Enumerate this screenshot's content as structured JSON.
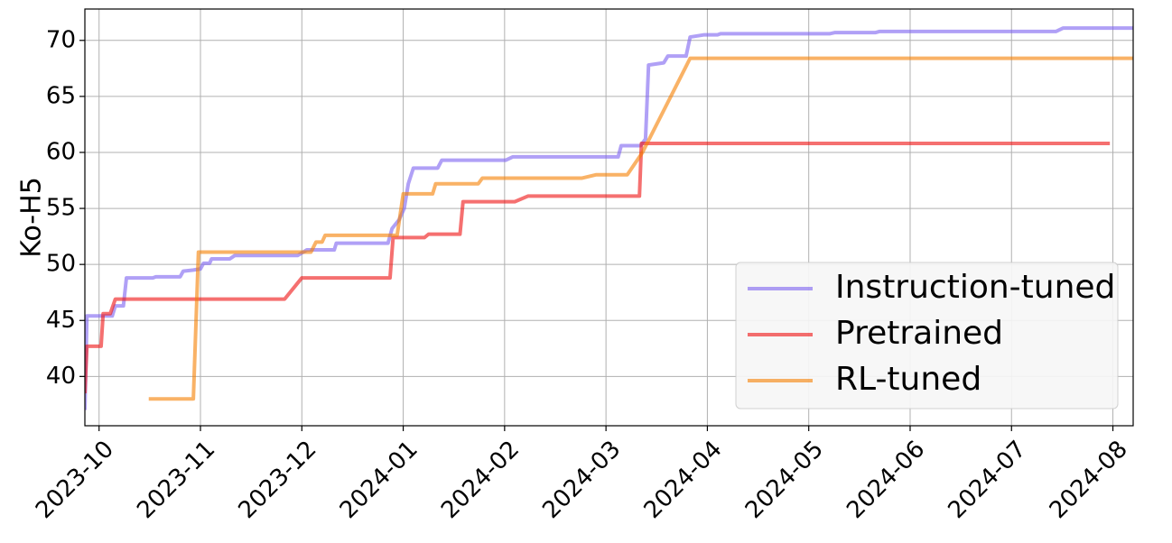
{
  "chart_data": {
    "type": "line",
    "y_label": "Ko-H5",
    "xlim": [
      -0.14,
      10.2
    ],
    "xticks": [
      {
        "value": 0,
        "label": "2023-10"
      },
      {
        "value": 1,
        "label": "2023-11"
      },
      {
        "value": 2,
        "label": "2023-12"
      },
      {
        "value": 3,
        "label": "2024-01"
      },
      {
        "value": 4,
        "label": "2024-02"
      },
      {
        "value": 5,
        "label": "2024-03"
      },
      {
        "value": 6,
        "label": "2024-04"
      },
      {
        "value": 7,
        "label": "2024-05"
      },
      {
        "value": 8,
        "label": "2024-06"
      },
      {
        "value": 9,
        "label": "2024-07"
      },
      {
        "value": 10,
        "label": "2024-08"
      }
    ],
    "ylim": [
      35.6,
      72.8
    ],
    "yticks": [
      40,
      45,
      50,
      55,
      60,
      65,
      70
    ],
    "grid": true,
    "legend": "lower right",
    "series": [
      {
        "name": "Instruction-tuned",
        "color": "#7b61f0",
        "x": [
          -0.14,
          -0.12,
          0.13,
          0.16,
          0.24,
          0.27,
          0.53,
          0.56,
          0.8,
          0.83,
          0.93,
          1.0,
          1.03,
          1.09,
          1.11,
          1.29,
          1.34,
          1.96,
          2.05,
          2.32,
          2.34,
          2.85,
          2.89,
          2.96,
          3.01,
          3.05,
          3.1,
          3.34,
          3.38,
          4.01,
          4.08,
          5.12,
          5.15,
          5.34,
          5.39,
          5.42,
          5.57,
          5.61,
          5.79,
          5.83,
          5.97,
          6.1,
          6.13,
          7.21,
          7.26,
          7.66,
          7.7,
          9.44,
          9.51,
          10.2
        ],
        "values": [
          37,
          45.4,
          45.4,
          46.3,
          46.3,
          48.8,
          48.8,
          48.9,
          48.9,
          49.4,
          49.5,
          49.6,
          50.1,
          50.1,
          50.5,
          50.5,
          50.8,
          50.8,
          51.3,
          51.3,
          51.9,
          51.9,
          53.2,
          54.0,
          55.0,
          57.2,
          58.6,
          58.6,
          59.3,
          59.3,
          59.6,
          59.6,
          60.6,
          60.6,
          61.2,
          67.8,
          68.0,
          68.6,
          68.6,
          70.3,
          70.5,
          70.5,
          70.6,
          70.6,
          70.7,
          70.7,
          70.8,
          70.8,
          71.1,
          71.1
        ]
      },
      {
        "name": "Pretrained",
        "color": "#ee1111",
        "x": [
          -0.14,
          -0.12,
          0.02,
          0.04,
          0.11,
          0.16,
          1.83,
          2.0,
          2.87,
          2.9,
          3.21,
          3.25,
          3.56,
          3.59,
          4.1,
          4.23,
          5.33,
          5.35,
          9.97
        ],
        "values": [
          38.5,
          42.7,
          42.7,
          45.6,
          45.6,
          46.9,
          46.9,
          48.8,
          48.8,
          52.4,
          52.4,
          52.7,
          52.7,
          55.6,
          55.6,
          56.1,
          56.1,
          60.8,
          60.8
        ]
      },
      {
        "name": "RL-tuned",
        "color": "#f57f00",
        "x": [
          0.49,
          0.93,
          0.98,
          2.09,
          2.14,
          2.2,
          2.23,
          2.94,
          3.0,
          3.29,
          3.32,
          3.74,
          3.78,
          4.76,
          4.9,
          5.21,
          5.36,
          5.83,
          10.2
        ],
        "values": [
          38,
          38,
          51.1,
          51.1,
          52.0,
          52.0,
          52.6,
          52.6,
          56.3,
          56.3,
          57.2,
          57.2,
          57.7,
          57.7,
          58.0,
          58.0,
          60.0,
          68.4,
          68.4
        ]
      }
    ]
  }
}
